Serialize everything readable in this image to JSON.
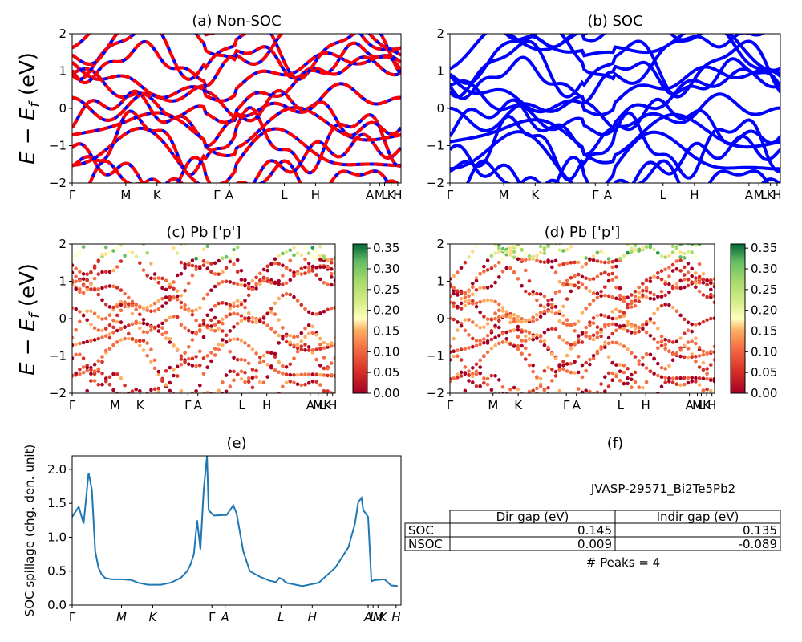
{
  "panels": {
    "a": {
      "title": "(a) Non-SOC"
    },
    "b": {
      "title": "(b) SOC"
    },
    "c": {
      "title": "(c)  Pb ['p']"
    },
    "d": {
      "title": "(d) Pb ['p']"
    },
    "e": {
      "title": "(e)"
    },
    "f": {
      "title": "(f)"
    }
  },
  "y_label_energy": "E − E_f (eV)",
  "y_label_spillage": "SOC spillage (chg. den. unit)",
  "colors": {
    "nonsoc_red": "#ff0000",
    "soc_blue": "#0000ff",
    "spillage_line": "#1f77b4"
  },
  "colorbar": {
    "ticks": [
      "0.00",
      "0.05",
      "0.10",
      "0.15",
      "0.20",
      "0.25",
      "0.30",
      "0.35"
    ],
    "cmap": "RdYlGn"
  },
  "band_kpath_labels": [
    "Γ",
    "M",
    "K",
    "Γ",
    "A",
    "L",
    "H",
    "A",
    "M",
    "L",
    "K",
    "H"
  ],
  "band_kpath_pos": [
    0,
    0.163,
    0.258,
    0.44,
    0.478,
    0.645,
    0.74,
    0.905,
    0.935,
    0.95,
    0.97,
    0.99
  ],
  "kpath_lines_label": "|",
  "energy_ticks": [
    "−2",
    "−1",
    "0",
    "1",
    "2"
  ],
  "spillage_ticks": [
    "0.0",
    "0.5",
    "1.0",
    "1.5",
    "2.0"
  ],
  "spillage_kpath_labels": [
    "Γ",
    "M",
    "K",
    "Γ",
    "A",
    "L",
    "H",
    "A",
    "L",
    "M",
    "K",
    "H"
  ],
  "spillage_kpath_pos": [
    0,
    0.15,
    0.245,
    0.425,
    0.465,
    0.635,
    0.73,
    0.9,
    0.915,
    0.93,
    0.945,
    0.985
  ],
  "table": {
    "material_id": "JVASP-29571_Bi2Te5Pb2",
    "col_headers": [
      "Dir gap (eV)",
      "Indir gap (eV)"
    ],
    "rows": [
      {
        "label": "SOC",
        "dir": "0.145",
        "indir": "0.135"
      },
      {
        "label": "NSOC",
        "dir": "0.009",
        "indir": "-0.089"
      }
    ],
    "peaks_text": "# Peaks = 4"
  },
  "chart_data": [
    {
      "type": "line",
      "panel": "a",
      "title": "(a) Non-SOC",
      "ylabel": "E − E_f (eV)",
      "ylim": [
        -2,
        2
      ],
      "series_style": "red/blue dashed bands",
      "bands_at_gamma": [
        1.15,
        0.25,
        -0.75,
        -1.2,
        -1.6,
        -1.9
      ],
      "bands_at_M": [
        1.5,
        0.9,
        -1.0,
        -1.4,
        -1.7,
        -1.9
      ]
    },
    {
      "type": "line",
      "panel": "b",
      "title": "(b) SOC",
      "ylabel": "",
      "ylim": [
        -2,
        2
      ],
      "series_style": "blue bands",
      "bands_at_gamma": [
        1.25,
        0.35,
        -0.55,
        -1.05,
        -1.3,
        -1.55,
        -1.85
      ],
      "bands_at_M": [
        1.55,
        0.95,
        -0.95,
        -1.35,
        -1.6,
        -1.85
      ]
    },
    {
      "type": "scatter",
      "panel": "c",
      "title": "(c)  Pb ['p']",
      "ylim": [
        -2,
        2
      ],
      "colorbar_range": [
        0,
        0.36
      ]
    },
    {
      "type": "scatter",
      "panel": "d",
      "title": "(d) Pb ['p']",
      "ylim": [
        -2,
        2
      ],
      "colorbar_range": [
        0,
        0.36
      ]
    },
    {
      "type": "line",
      "panel": "e",
      "title": "(e)",
      "ylabel": "SOC spillage (chg. den. unit)",
      "ylim": [
        0,
        2.2
      ],
      "x": [
        0,
        0.02,
        0.035,
        0.05,
        0.06,
        0.07,
        0.08,
        0.09,
        0.1,
        0.12,
        0.15,
        0.18,
        0.2,
        0.23,
        0.27,
        0.3,
        0.33,
        0.35,
        0.36,
        0.37,
        0.38,
        0.39,
        0.4,
        0.41,
        0.415,
        0.43,
        0.47,
        0.49,
        0.5,
        0.52,
        0.54,
        0.57,
        0.6,
        0.62,
        0.63,
        0.64,
        0.65,
        0.7,
        0.75,
        0.8,
        0.84,
        0.86,
        0.87,
        0.88,
        0.885,
        0.9,
        0.91,
        0.92,
        0.95,
        0.97,
        0.99
      ],
      "y": [
        1.3,
        1.45,
        1.2,
        1.95,
        1.7,
        0.8,
        0.55,
        0.45,
        0.4,
        0.38,
        0.38,
        0.37,
        0.33,
        0.3,
        0.3,
        0.33,
        0.4,
        0.5,
        0.6,
        0.75,
        1.25,
        0.82,
        1.7,
        2.2,
        1.4,
        1.32,
        1.33,
        1.47,
        1.35,
        0.8,
        0.5,
        0.42,
        0.36,
        0.34,
        0.4,
        0.38,
        0.33,
        0.28,
        0.33,
        0.55,
        0.85,
        1.2,
        1.52,
        1.58,
        1.4,
        1.3,
        0.35,
        0.37,
        0.38,
        0.29,
        0.28
      ]
    }
  ]
}
